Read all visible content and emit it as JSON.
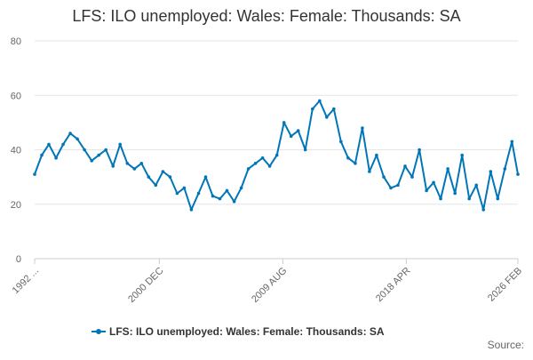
{
  "chart_data": {
    "type": "line",
    "title": "LFS: ILO unemployed: Wales: Female: Thousands: SA",
    "xlabel": "",
    "ylabel": "",
    "ylim": [
      0,
      80
    ],
    "y_ticks": [
      "0",
      "20",
      "40",
      "60",
      "80"
    ],
    "x_range": [
      "1992 MAR",
      "2026 FEB"
    ],
    "x_ticks": [
      {
        "label": "1992 ...",
        "value": "1992 MAR"
      },
      {
        "label": "2000 DEC",
        "value": "2000 DEC"
      },
      {
        "label": "2009 AUG",
        "value": "2009 AUG"
      },
      {
        "label": "2018 APR",
        "value": "2018 APR"
      },
      {
        "label": "2026 FEB",
        "value": "2026 FEB"
      }
    ],
    "grid": "horizontal",
    "legend": {
      "position": "bottom"
    },
    "source": "Source:",
    "series": [
      {
        "name": "LFS: ILO unemployed: Wales: Female: Thousands: SA",
        "color": "#0076b8",
        "x": [
          "1992 MAR",
          "1992 SEP",
          "1993 MAR",
          "1993 SEP",
          "1994 MAR",
          "1994 SEP",
          "1995 MAR",
          "1995 SEP",
          "1996 MAR",
          "1996 SEP",
          "1997 MAR",
          "1997 SEP",
          "1998 MAR",
          "1998 SEP",
          "1999 MAR",
          "1999 SEP",
          "2000 MAR",
          "2000 SEP",
          "2001 MAR",
          "2001 SEP",
          "2002 MAR",
          "2002 SEP",
          "2003 MAR",
          "2003 SEP",
          "2004 MAR",
          "2004 SEP",
          "2005 MAR",
          "2005 SEP",
          "2006 MAR",
          "2006 SEP",
          "2007 MAR",
          "2007 SEP",
          "2008 MAR",
          "2008 SEP",
          "2009 MAR",
          "2009 SEP",
          "2010 MAR",
          "2010 SEP",
          "2011 MAR",
          "2011 SEP",
          "2012 MAR",
          "2012 SEP",
          "2013 MAR",
          "2013 SEP",
          "2014 MAR",
          "2014 SEP",
          "2015 MAR",
          "2015 SEP",
          "2016 MAR",
          "2016 SEP",
          "2017 MAR",
          "2017 SEP",
          "2018 MAR",
          "2018 SEP",
          "2019 MAR",
          "2019 SEP",
          "2020 MAR",
          "2020 SEP",
          "2021 MAR",
          "2021 SEP",
          "2022 MAR",
          "2022 SEP",
          "2023 MAR",
          "2023 SEP",
          "2024 MAR",
          "2024 SEP",
          "2025 MAR",
          "2025 SEP",
          "2026 FEB"
        ],
        "y": [
          31,
          38,
          42,
          37,
          42,
          46,
          44,
          40,
          36,
          38,
          40,
          34,
          42,
          35,
          33,
          35,
          30,
          27,
          32,
          30,
          24,
          26,
          18,
          24,
          30,
          23,
          22,
          25,
          21,
          26,
          33,
          35,
          37,
          34,
          38,
          50,
          45,
          47,
          40,
          55,
          58,
          52,
          55,
          43,
          37,
          35,
          48,
          32,
          38,
          30,
          26,
          27,
          34,
          30,
          40,
          25,
          28,
          22,
          33,
          24,
          38,
          22,
          27,
          18,
          32,
          22,
          33,
          43,
          31
        ]
      }
    ]
  }
}
